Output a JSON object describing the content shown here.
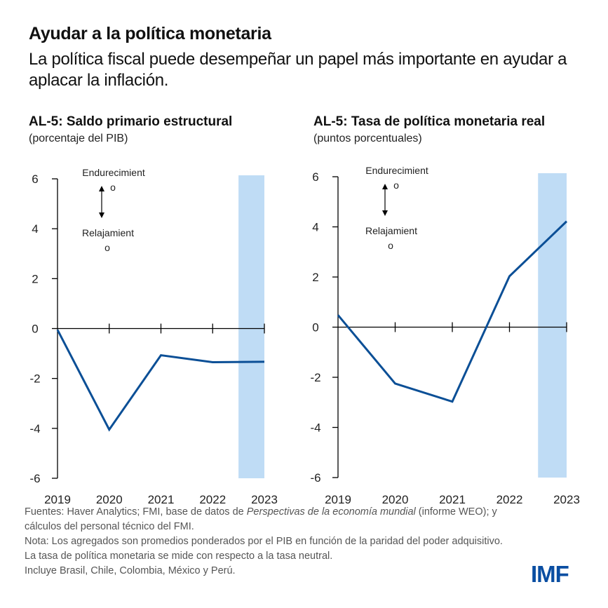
{
  "header": {
    "title": "Ayudar a la política monetaria",
    "subtitle": "La política fiscal puede desempeñar un papel más importante en ayudar a aplacar la inflación."
  },
  "chart_data": [
    {
      "type": "line",
      "title": "AL-5: Saldo primario estructural",
      "subtitle": "(porcentaje del PIB)",
      "x": [
        "2019",
        "2020",
        "2021",
        "2022",
        "2023"
      ],
      "series": [
        {
          "name": "AL-5",
          "values": [
            -0.05,
            -4.05,
            -1.07,
            -1.35,
            -1.33
          ],
          "color": "#0b4f96"
        }
      ],
      "ylim": [
        -6,
        6
      ],
      "yticks": [
        "6",
        "4",
        "2",
        "0",
        "-2",
        "-4",
        "-6"
      ],
      "shaded_region": {
        "from": "2022.5",
        "to": "2023",
        "color": "#bfdcf5"
      },
      "annotations": {
        "up": "Endurecimient",
        "up_wrap": "o",
        "down": "Relajamient",
        "down_wrap": "o"
      },
      "xlabel": "",
      "ylabel": "",
      "grid": false,
      "legend": "none"
    },
    {
      "type": "line",
      "title": "AL-5: Tasa de política monetaria real",
      "subtitle": "(puntos porcentuales)",
      "x": [
        "2019",
        "2020",
        "2021",
        "2022",
        "2023"
      ],
      "series": [
        {
          "name": "AL-5",
          "values": [
            0.48,
            -2.25,
            -2.97,
            2.03,
            4.22
          ],
          "color": "#0b4f96"
        }
      ],
      "ylim": [
        -6,
        6
      ],
      "yticks": [
        "6",
        "4",
        "2",
        "0",
        "-2",
        "-4",
        "-6"
      ],
      "shaded_region": {
        "from": "2022.5",
        "to": "2023",
        "color": "#bfdcf5"
      },
      "annotations": {
        "up": "Endurecimient",
        "up_wrap": "o",
        "down": "Relajamient",
        "down_wrap": "o"
      },
      "xlabel": "",
      "ylabel": "",
      "grid": false,
      "legend": "none"
    }
  ],
  "notes": {
    "sources_prefix": "Fuentes: Haver Analytics; FMI, base de datos de ",
    "sources_italic": "Perspectivas de la economía mundial",
    "sources_suffix": " (informe WEO); y cálculos del personal técnico del FMI.",
    "note": "Nota: Los agregados son promedios ponderados por el PIB en función de la paridad del poder adquisitivo.  La tasa de política monetaria se mide con respecto a la tasa neutral.",
    "countries": "Incluye Brasil, Chile, Colombia,  México y Perú."
  },
  "logo": {
    "text": "IMF",
    "color": "#0a4ea2"
  }
}
